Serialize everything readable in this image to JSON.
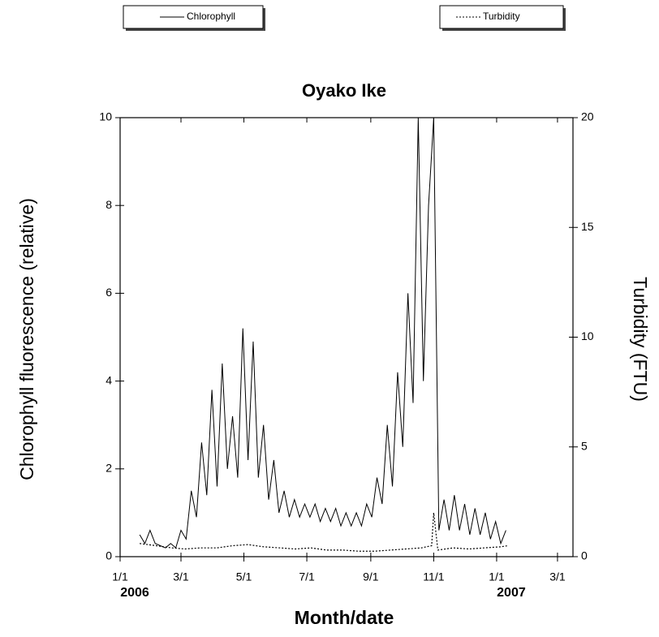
{
  "chart_data": {
    "type": "line",
    "title": "Oyako Ike",
    "x_label": "Month/date",
    "y_label": "Chlorophyll fluorescence (relative)",
    "y2_label": "Turbidity (FTU)",
    "xlim": [
      "2006-01-01",
      "2007-03-16"
    ],
    "xticks": [
      {
        "value": "2006-01-01",
        "label": "1/1"
      },
      {
        "value": "2006-03-01",
        "label": "3/1"
      },
      {
        "value": "2006-05-01",
        "label": "5/1"
      },
      {
        "value": "2006-07-01",
        "label": "7/1"
      },
      {
        "value": "2006-09-01",
        "label": "9/1"
      },
      {
        "value": "2006-11-01",
        "label": "11/1"
      },
      {
        "value": "2007-01-01",
        "label": "1/1"
      },
      {
        "value": "2007-03-01",
        "label": "3/1"
      }
    ],
    "year_labels": [
      {
        "value": "2006-01-01",
        "label": "2006"
      },
      {
        "value": "2007-01-01",
        "label": "2007"
      }
    ],
    "ylim": [
      0,
      10
    ],
    "yticks": [
      0,
      2,
      4,
      6,
      8,
      10
    ],
    "y2lim": [
      0,
      20
    ],
    "y2ticks": [
      0,
      5,
      10,
      15,
      20
    ],
    "grid": false,
    "series": [
      {
        "name": "Chlorophyll",
        "color": "#000000",
        "dash": "solid",
        "x": [
          "2006-01-20",
          "2006-01-25",
          "2006-01-30",
          "2006-02-04",
          "2006-02-09",
          "2006-02-14",
          "2006-02-19",
          "2006-02-24",
          "2006-03-01",
          "2006-03-06",
          "2006-03-11",
          "2006-03-16",
          "2006-03-21",
          "2006-03-26",
          "2006-03-31",
          "2006-04-05",
          "2006-04-10",
          "2006-04-15",
          "2006-04-20",
          "2006-04-25",
          "2006-04-30",
          "2006-05-05",
          "2006-05-10",
          "2006-05-15",
          "2006-05-20",
          "2006-05-25",
          "2006-05-30",
          "2006-06-04",
          "2006-06-09",
          "2006-06-14",
          "2006-06-19",
          "2006-06-24",
          "2006-06-29",
          "2006-07-04",
          "2006-07-09",
          "2006-07-14",
          "2006-07-19",
          "2006-07-24",
          "2006-07-29",
          "2006-08-03",
          "2006-08-08",
          "2006-08-13",
          "2006-08-18",
          "2006-08-23",
          "2006-08-28",
          "2006-09-02",
          "2006-09-07",
          "2006-09-12",
          "2006-09-17",
          "2006-09-22",
          "2006-09-27",
          "2006-10-02",
          "2006-10-07",
          "2006-10-12",
          "2006-10-17",
          "2006-10-22",
          "2006-10-27",
          "2006-11-01",
          "2006-11-06",
          "2006-11-11",
          "2006-11-16",
          "2006-11-21",
          "2006-11-26",
          "2006-12-01",
          "2006-12-06",
          "2006-12-11",
          "2006-12-16",
          "2006-12-21",
          "2006-12-26",
          "2006-12-31",
          "2007-01-05",
          "2007-01-10"
        ],
        "values": [
          0.5,
          0.3,
          0.6,
          0.3,
          0.25,
          0.2,
          0.3,
          0.2,
          0.6,
          0.4,
          1.5,
          0.9,
          2.6,
          1.4,
          3.8,
          1.6,
          4.4,
          2.0,
          3.2,
          1.8,
          5.2,
          2.2,
          4.9,
          1.8,
          3.0,
          1.3,
          2.2,
          1.0,
          1.5,
          0.9,
          1.3,
          0.9,
          1.2,
          0.9,
          1.2,
          0.8,
          1.1,
          0.8,
          1.1,
          0.7,
          1.0,
          0.7,
          1.0,
          0.7,
          1.2,
          0.9,
          1.8,
          1.2,
          3.0,
          1.6,
          4.2,
          2.5,
          6.0,
          3.5,
          10,
          4.0,
          8.0,
          10,
          0.6,
          1.3,
          0.6,
          1.4,
          0.6,
          1.2,
          0.5,
          1.1,
          0.5,
          1.0,
          0.4,
          0.8,
          0.3,
          0.6
        ]
      },
      {
        "name": "Turbidity",
        "color": "#000000",
        "dash": "dotted",
        "axis": "y2",
        "x": [
          "2006-01-20",
          "2006-02-05",
          "2006-02-20",
          "2006-03-05",
          "2006-03-20",
          "2006-04-05",
          "2006-04-20",
          "2006-05-05",
          "2006-05-20",
          "2006-06-05",
          "2006-06-20",
          "2006-07-05",
          "2006-07-20",
          "2006-08-05",
          "2006-08-20",
          "2006-09-05",
          "2006-09-20",
          "2006-10-05",
          "2006-10-20",
          "2006-10-30",
          "2006-11-01",
          "2006-11-05",
          "2006-11-20",
          "2006-12-05",
          "2006-12-20",
          "2007-01-05",
          "2007-01-12"
        ],
        "values": [
          0.6,
          0.5,
          0.4,
          0.35,
          0.4,
          0.4,
          0.5,
          0.55,
          0.45,
          0.4,
          0.35,
          0.4,
          0.3,
          0.3,
          0.25,
          0.25,
          0.3,
          0.35,
          0.4,
          0.5,
          2.0,
          0.3,
          0.4,
          0.35,
          0.4,
          0.45,
          0.5
        ]
      }
    ]
  }
}
